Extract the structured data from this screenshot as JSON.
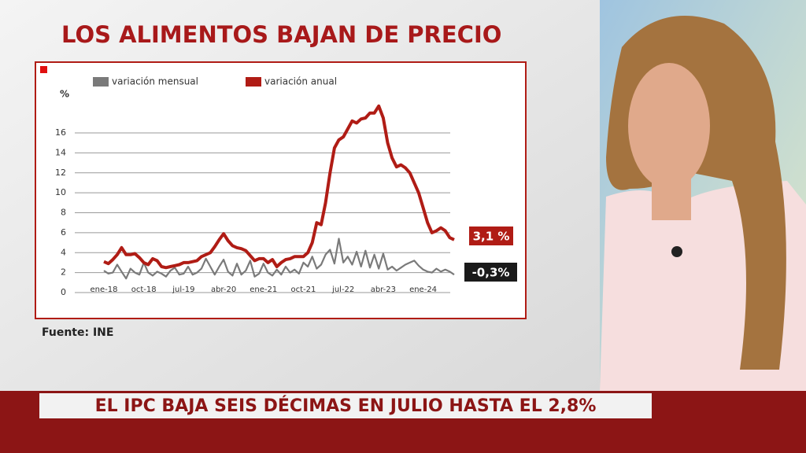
{
  "chart_data": {
    "type": "line",
    "title": "LOS ALIMENTOS BAJAN DE PRECIO",
    "y_label": "%",
    "categories": [
      "ene-18",
      null,
      null,
      null,
      null,
      null,
      null,
      null,
      null,
      "oct-18",
      null,
      null,
      null,
      null,
      null,
      null,
      null,
      null,
      "jul-19",
      null,
      null,
      null,
      null,
      null,
      null,
      null,
      null,
      "abr-20",
      null,
      null,
      null,
      null,
      null,
      null,
      null,
      null,
      "ene-21",
      null,
      null,
      null,
      null,
      null,
      null,
      null,
      null,
      "oct-21",
      null,
      null,
      null,
      null,
      null,
      null,
      null,
      null,
      "jul-22",
      null,
      null,
      null,
      null,
      null,
      null,
      null,
      null,
      "abr-23",
      null,
      null,
      null,
      null,
      null,
      null,
      null,
      null,
      "ene-24",
      null,
      null,
      null,
      null,
      null,
      null,
      null
    ],
    "series": [
      {
        "name": "variación mensual",
        "color": "#7a7a7a",
        "values": [
          2.2,
          1.9,
          2.0,
          2.8,
          2.1,
          1.4,
          2.4,
          2.0,
          1.8,
          3.0,
          2.0,
          1.7,
          2.1,
          1.9,
          1.6,
          2.2,
          2.5,
          1.8,
          1.9,
          2.6,
          1.8,
          2.0,
          2.4,
          3.4,
          2.6,
          1.8,
          2.6,
          3.3,
          2.1,
          1.7,
          2.9,
          1.8,
          2.2,
          3.2,
          1.6,
          1.9,
          2.9,
          2.0,
          1.7,
          2.3,
          1.8,
          2.6,
          2.0,
          2.3,
          1.9,
          3.0,
          2.6,
          3.6,
          2.4,
          2.8,
          3.8,
          4.3,
          2.9,
          5.4,
          3.0,
          3.6,
          2.8,
          4.1,
          2.6,
          4.2,
          2.5,
          3.8,
          2.4,
          3.9,
          2.3,
          2.6,
          2.2,
          2.5,
          2.8,
          3.0,
          3.2,
          2.7,
          2.3,
          2.1,
          2.0,
          2.4,
          2.1,
          2.3,
          2.1,
          1.8
        ]
      },
      {
        "name": "variación anual",
        "color": "#b01c15",
        "values": [
          3.1,
          2.9,
          3.3,
          3.8,
          4.5,
          3.8,
          3.8,
          3.9,
          3.5,
          3.0,
          2.8,
          3.4,
          3.2,
          2.6,
          2.5,
          2.6,
          2.7,
          2.8,
          3.0,
          3.0,
          3.1,
          3.2,
          3.6,
          3.8,
          4.0,
          4.6,
          5.3,
          5.9,
          5.2,
          4.7,
          4.5,
          4.4,
          4.2,
          3.7,
          3.2,
          3.4,
          3.4,
          3.0,
          3.3,
          2.6,
          3.0,
          3.3,
          3.4,
          3.6,
          3.6,
          3.6,
          4.0,
          5.0,
          7.0,
          6.8,
          9.0,
          12.0,
          14.5,
          15.3,
          15.6,
          16.4,
          17.2,
          17.0,
          17.4,
          17.5,
          18.0,
          18.0,
          18.7,
          17.5,
          15.0,
          13.5,
          12.6,
          12.8,
          12.5,
          12.0,
          11.0,
          10.0,
          8.5,
          7.0,
          6.0,
          6.2,
          6.5,
          6.2,
          5.5,
          5.3
        ]
      }
    ],
    "ylim": [
      0,
      19
    ],
    "yticks": [
      0,
      2,
      4,
      6,
      8,
      10,
      12,
      14,
      16
    ],
    "grid": true,
    "annotations": [
      {
        "text": "3,1 %",
        "color": "#b01c15"
      },
      {
        "text": "-0,3%",
        "color": "#1a1a1a"
      }
    ]
  },
  "source": "Fuente: INE",
  "headline": "EL IPC BAJA SEIS DÉCIMAS EN JULIO HASTA EL 2,8%"
}
